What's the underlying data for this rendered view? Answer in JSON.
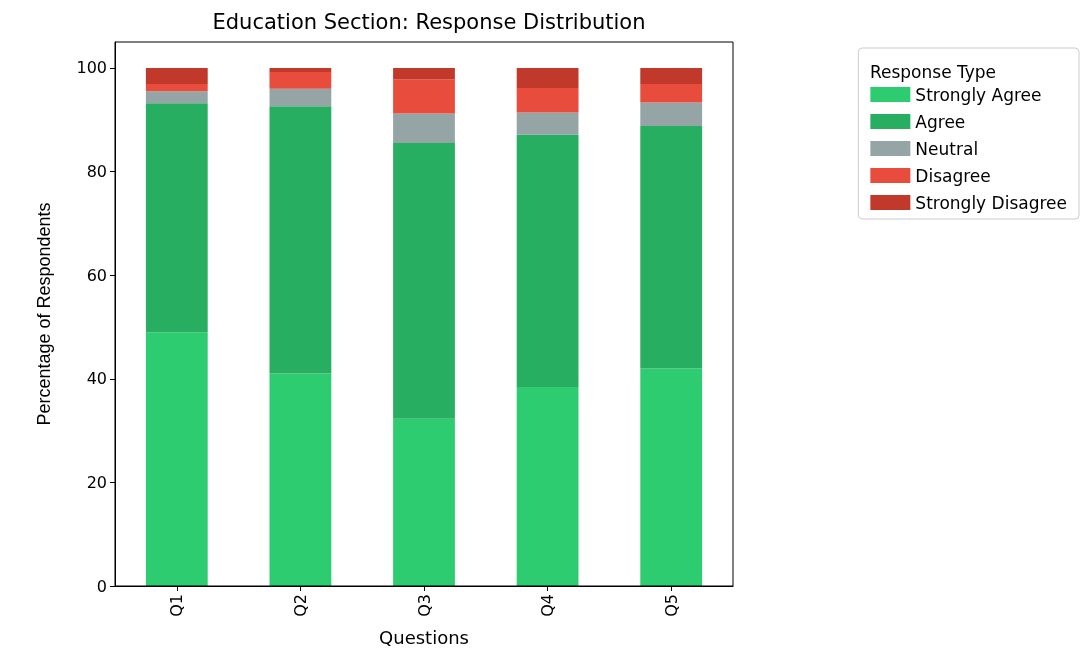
{
  "chart_data": {
    "type": "bar",
    "title": "Education Section: Response Distribution",
    "xlabel": "Questions",
    "ylabel": "Percentage of Respondents",
    "legend_title": "Response Type",
    "categories": [
      "Q1",
      "Q2",
      "Q3",
      "Q4",
      "Q5"
    ],
    "stacked": true,
    "ylim": [
      0,
      105
    ],
    "yticks": [
      0,
      20,
      40,
      60,
      80,
      100
    ],
    "grid": false,
    "legend": "top right",
    "series": [
      {
        "name": "Strongly Agree",
        "color": "#2ecc71",
        "values": [
          49,
          41,
          32.3,
          38.4,
          42
        ]
      },
      {
        "name": "Agree",
        "color": "#27ae60",
        "values": [
          44.2,
          51.6,
          53.2,
          48.7,
          46.8
        ]
      },
      {
        "name": "Neutral",
        "color": "#95a5a6",
        "values": [
          2.3,
          3.4,
          5.7,
          4.3,
          4.5
        ]
      },
      {
        "name": "Disagree",
        "color": "#e74c3c",
        "values": [
          1.4,
          3.2,
          6.6,
          4.7,
          3.6
        ]
      },
      {
        "name": "Strongly Disagree",
        "color": "#c0392b",
        "values": [
          3.1,
          0.8,
          2.2,
          3.9,
          3.1
        ]
      }
    ]
  }
}
